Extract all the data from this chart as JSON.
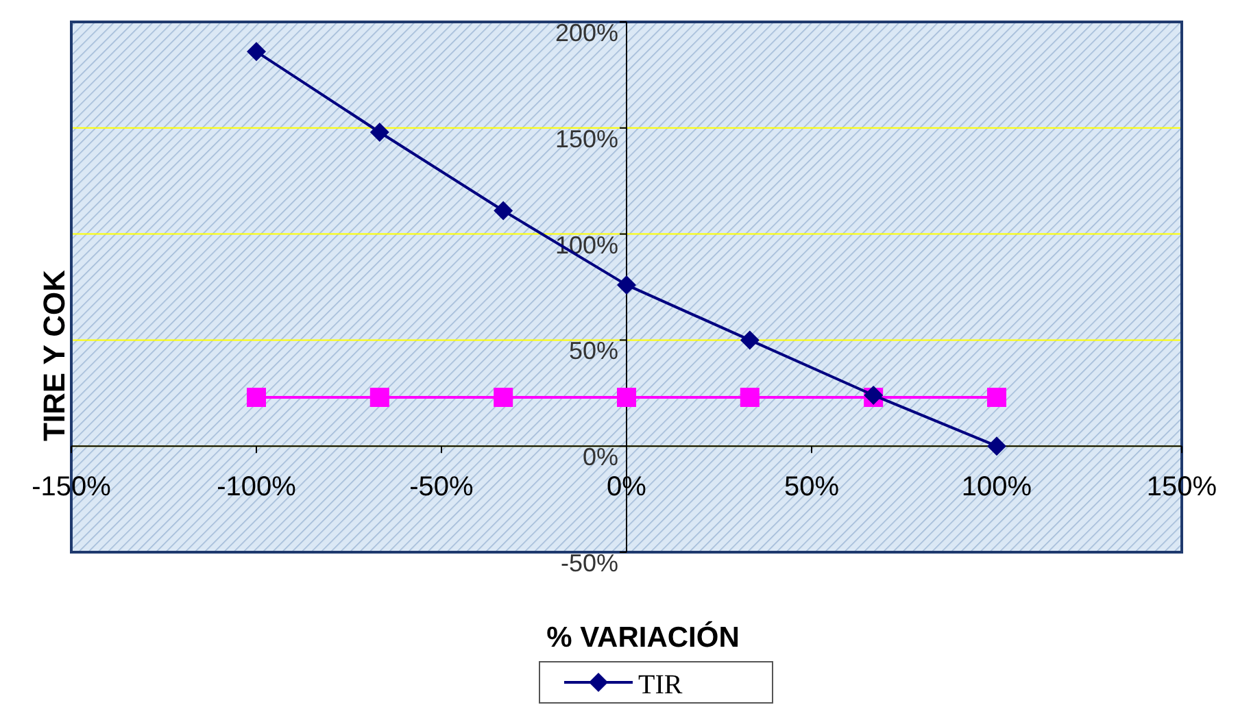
{
  "chart_data": {
    "type": "line",
    "xlabel": "% VARIACIÓN",
    "ylabel": "TIRE Y COK",
    "x": [
      -100,
      -66.7,
      -33.3,
      0,
      33.3,
      66.7,
      100
    ],
    "series": [
      {
        "name": "TIR",
        "color": "#000080",
        "marker": "diamond",
        "values": [
          186,
          148,
          111,
          76,
          50,
          24,
          0
        ]
      },
      {
        "color": "#ff00ff",
        "marker": "square",
        "values": [
          23,
          23,
          23,
          23,
          23,
          23,
          23
        ]
      }
    ],
    "xlim": [
      -150,
      150
    ],
    "xticks": [
      {
        "value": -150,
        "label": "-150%"
      },
      {
        "value": -100,
        "label": "-100%"
      },
      {
        "value": -50,
        "label": "-50%"
      },
      {
        "value": 0,
        "label": "0%"
      },
      {
        "value": 50,
        "label": "50%"
      },
      {
        "value": 100,
        "label": "100%"
      },
      {
        "value": 150,
        "label": "150%"
      }
    ],
    "ylim": [
      -50,
      200
    ],
    "yticks": [
      {
        "value": -50,
        "label": "-50%"
      },
      {
        "value": 0,
        "label": "0%"
      },
      {
        "value": 50,
        "label": "50%"
      },
      {
        "value": 100,
        "label": "100%"
      },
      {
        "value": 150,
        "label": "150%"
      },
      {
        "value": 200,
        "label": "200%"
      }
    ],
    "grid": "y",
    "legend": "bottom"
  }
}
